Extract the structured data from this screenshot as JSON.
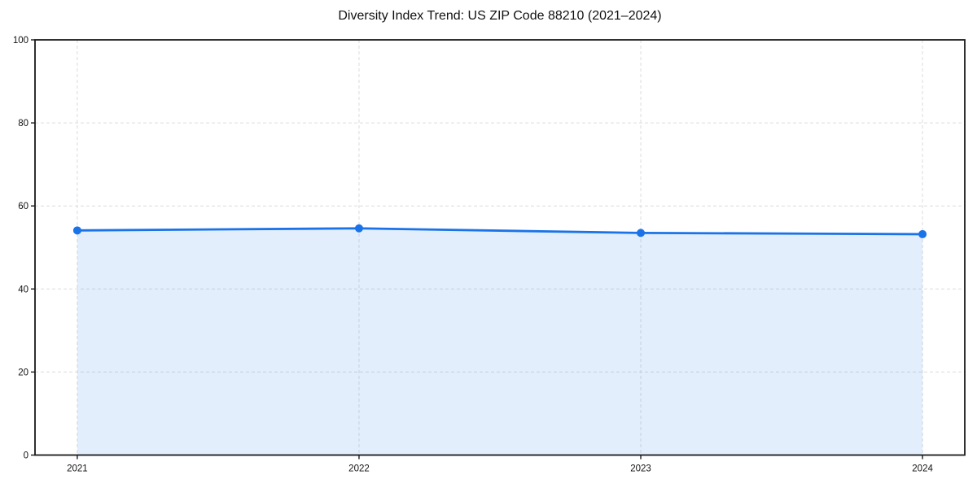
{
  "chart_data": {
    "type": "area",
    "title": "Diversity Index Trend: US ZIP Code 88210 (2021–2024)",
    "x": [
      2021,
      2022,
      2023,
      2024
    ],
    "values": [
      54.1,
      54.6,
      53.5,
      53.2
    ],
    "xlabel": "",
    "ylabel": "",
    "xlim": [
      2021,
      2024
    ],
    "ylim": [
      0,
      100
    ],
    "yticks": [
      0,
      20,
      40,
      60,
      80,
      100
    ],
    "xtick_labels": [
      "2021",
      "2022",
      "2023",
      "2024"
    ],
    "grid": true,
    "grid_style": "dashed",
    "legend_position": "none",
    "line_color": "#1a73e8",
    "fill_color": "rgba(26,115,232,0.12)",
    "grid_color": "#dcdcdc",
    "frame_color": "#1a1a1a",
    "marker": "circle"
  }
}
